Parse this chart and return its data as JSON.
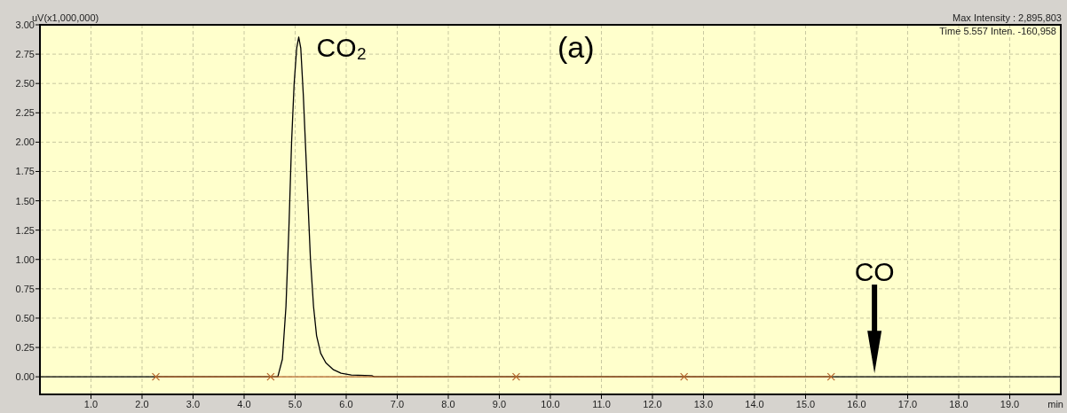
{
  "chart_data": {
    "type": "line",
    "xlabel": "min",
    "ylabel": "uV(x1,000,000)",
    "xlim": [
      0,
      20
    ],
    "ylim": [
      -0.15,
      3.0
    ],
    "xticks": [
      {
        "value": 1,
        "label": "1.0"
      },
      {
        "value": 2,
        "label": "2.0"
      },
      {
        "value": 3,
        "label": "3.0"
      },
      {
        "value": 4,
        "label": "4.0"
      },
      {
        "value": 5,
        "label": "5.0"
      },
      {
        "value": 6,
        "label": "6.0"
      },
      {
        "value": 7,
        "label": "7.0"
      },
      {
        "value": 8,
        "label": "8.0"
      },
      {
        "value": 9,
        "label": "9.0"
      },
      {
        "value": 10,
        "label": "10.0"
      },
      {
        "value": 11,
        "label": "11.0"
      },
      {
        "value": 12,
        "label": "12.0"
      },
      {
        "value": 13,
        "label": "13.0"
      },
      {
        "value": 14,
        "label": "14.0"
      },
      {
        "value": 15,
        "label": "15.0"
      },
      {
        "value": 16,
        "label": "16.0"
      },
      {
        "value": 17,
        "label": "17.0"
      },
      {
        "value": 18,
        "label": "18.0"
      },
      {
        "value": 19,
        "label": "19.0"
      }
    ],
    "yticks": [
      {
        "value": 0,
        "label": "0.00"
      },
      {
        "value": 0.25,
        "label": "0.25"
      },
      {
        "value": 0.5,
        "label": "0.50"
      },
      {
        "value": 0.75,
        "label": "0.75"
      },
      {
        "value": 1,
        "label": "1.00"
      },
      {
        "value": 1.25,
        "label": "1.25"
      },
      {
        "value": 1.5,
        "label": "1.50"
      },
      {
        "value": 1.75,
        "label": "1.75"
      },
      {
        "value": 2,
        "label": "2.00"
      },
      {
        "value": 2.25,
        "label": "2.25"
      },
      {
        "value": 2.5,
        "label": "2.50"
      },
      {
        "value": 2.75,
        "label": "2.75"
      },
      {
        "value": 3,
        "label": "3.00"
      }
    ],
    "grid": true,
    "line_style": "solid",
    "series": [
      {
        "color": "#000000",
        "x": [
          0,
          4.66,
          4.75,
          4.82,
          4.88,
          4.93,
          4.98,
          5.03,
          5.07,
          5.11,
          5.16,
          5.2,
          5.25,
          5.3,
          5.36,
          5.42,
          5.5,
          5.6,
          5.75,
          5.9,
          6.1,
          6.5,
          6.55,
          20
        ],
        "values": [
          0,
          0,
          0.15,
          0.6,
          1.3,
          2.0,
          2.5,
          2.8,
          2.896,
          2.8,
          2.4,
          2.0,
          1.5,
          1.0,
          0.6,
          0.35,
          0.2,
          0.12,
          0.06,
          0.03,
          0.015,
          0.01,
          0,
          0
        ]
      },
      {
        "color": "#b5652a",
        "x": [
          2.27,
          15.5
        ],
        "values": [
          0,
          0
        ]
      },
      {
        "type": "scatter",
        "color": "#b5652a",
        "marker": "cross",
        "x": [
          2.27,
          4.52,
          9.33,
          12.62,
          15.5
        ],
        "values": [
          0,
          0,
          0,
          0,
          0
        ]
      }
    ],
    "annotations": [
      {
        "text": "CO₂",
        "x": 5.07,
        "y": 2.896
      },
      "(a)",
      "CO",
      "Max Intensity : 2,895,803",
      "Time 5.557 Inten. -160,958"
    ]
  }
}
